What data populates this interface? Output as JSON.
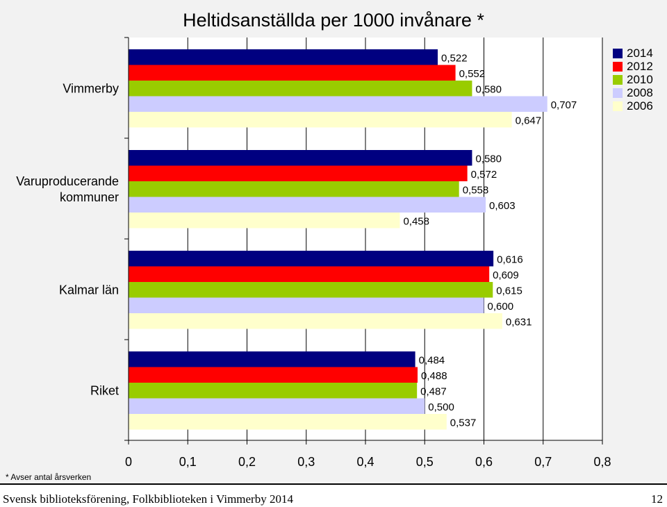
{
  "chart_data": {
    "type": "bar",
    "orientation": "horizontal",
    "title": "Heltidsanställda per 1000 invånare *",
    "categories": [
      "Vimmerby",
      "Varuproducerande kommuner",
      "Kalmar län",
      "Riket"
    ],
    "category_labels": [
      [
        "Vimmerby"
      ],
      [
        "Varuproducerande",
        "kommuner"
      ],
      [
        "Kalmar län"
      ],
      [
        "Riket"
      ]
    ],
    "series": [
      {
        "name": "2014",
        "color": "#000080",
        "values": [
          0.522,
          0.58,
          0.616,
          0.484
        ],
        "labels": [
          "0,522",
          "0,580",
          "0,616",
          "0,484"
        ]
      },
      {
        "name": "2012",
        "color": "#ff0000",
        "values": [
          0.552,
          0.572,
          0.609,
          0.488
        ],
        "labels": [
          "0,552",
          "0,572",
          "0,609",
          "0,488"
        ]
      },
      {
        "name": "2010",
        "color": "#99cc00",
        "values": [
          0.58,
          0.558,
          0.615,
          0.487
        ],
        "labels": [
          "0,580",
          "0,558",
          "0,615",
          "0,487"
        ]
      },
      {
        "name": "2008",
        "color": "#ccccff",
        "values": [
          0.707,
          0.603,
          0.6,
          0.5
        ],
        "labels": [
          "0,707",
          "0,603",
          "0,600",
          "0,500"
        ]
      },
      {
        "name": "2006",
        "color": "#ffffcc",
        "values": [
          0.647,
          0.458,
          0.631,
          0.537
        ],
        "labels": [
          "0,647",
          "0,458",
          "0,631",
          "0,537"
        ]
      }
    ],
    "xlim": [
      0,
      0.8
    ],
    "xticks": [
      0,
      0.1,
      0.2,
      0.3,
      0.4,
      0.5,
      0.6,
      0.7,
      0.8
    ],
    "xtick_labels": [
      "0",
      "0,1",
      "0,2",
      "0,3",
      "0,4",
      "0,5",
      "0,6",
      "0,7",
      "0,8"
    ],
    "grid": true,
    "legend_position": "top-right"
  },
  "footnote": "* Avser antal årsverken",
  "footer": "Svensk biblioteksförening, Folkbiblioteken i Vimmerby 2014",
  "page_number": "12"
}
